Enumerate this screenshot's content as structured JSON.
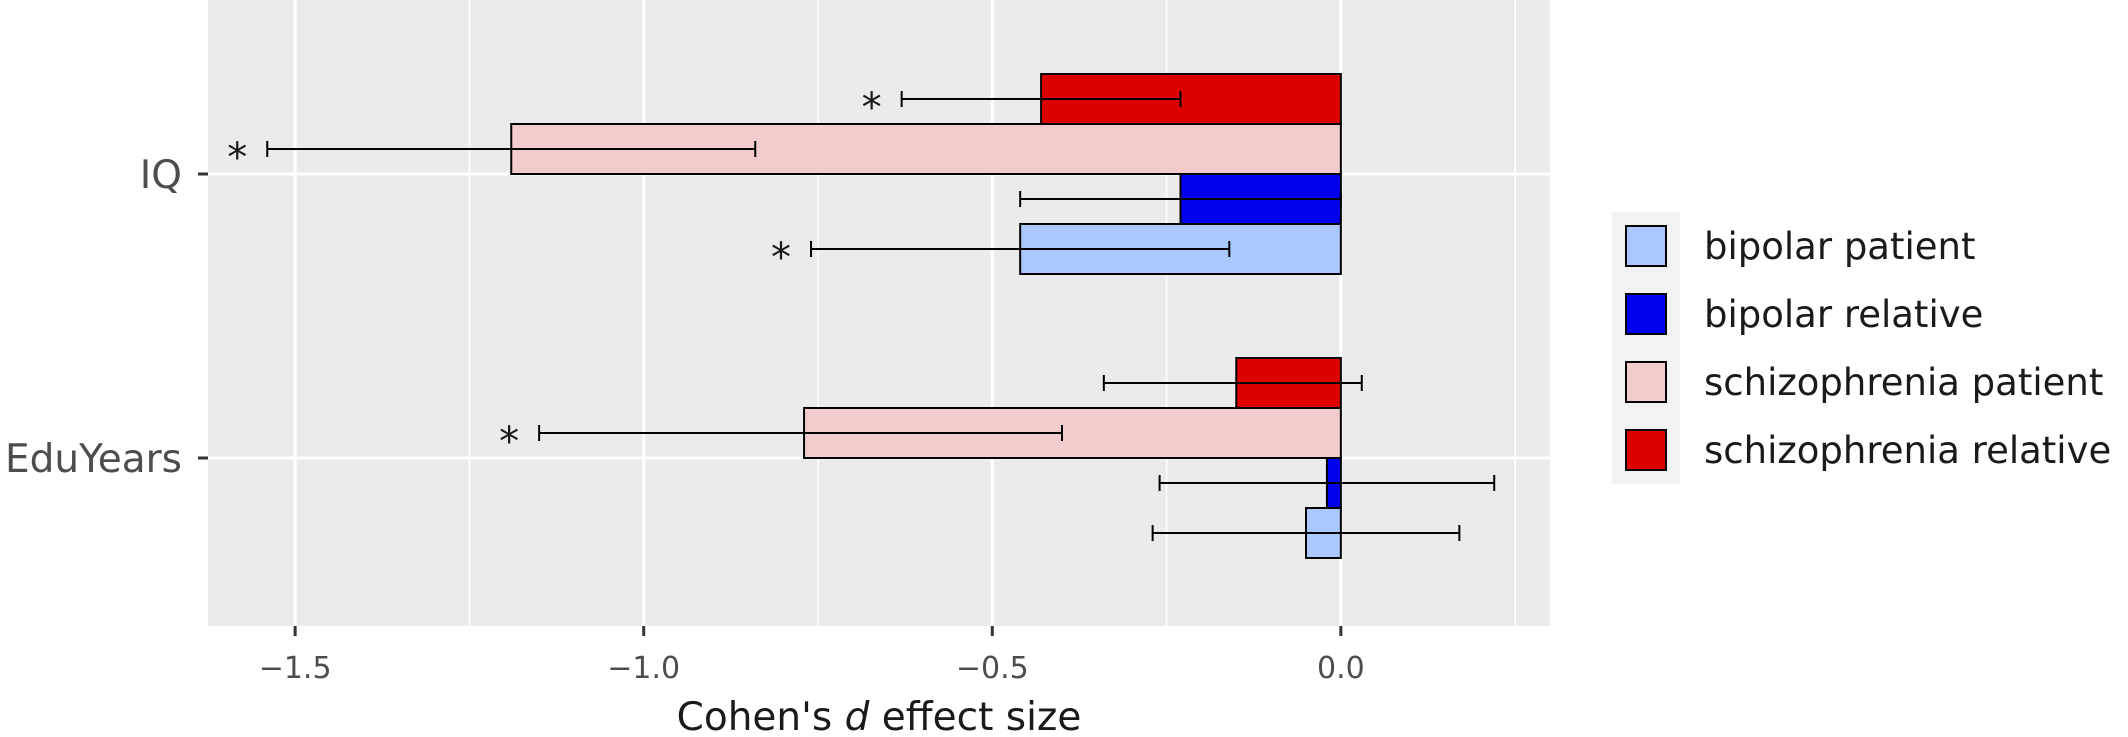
{
  "chart_data": {
    "type": "bar",
    "orientation": "horizontal",
    "categories": [
      "IQ",
      "EduYears"
    ],
    "series": [
      {
        "name": "bipolar patient",
        "color": "#a8c8ff",
        "values": [
          -0.46,
          -0.05
        ],
        "ci_low": [
          -0.76,
          -0.27
        ],
        "ci_high": [
          -0.16,
          0.17
        ],
        "significant": [
          true,
          false
        ]
      },
      {
        "name": "bipolar relative",
        "color": "#0000ee",
        "values": [
          -0.23,
          -0.02
        ],
        "ci_low": [
          -0.46,
          -0.26
        ],
        "ci_high": [
          0.0,
          0.22
        ],
        "significant": [
          false,
          false
        ]
      },
      {
        "name": "schizophrenia patient",
        "color": "#f2cccc",
        "values": [
          -1.19,
          -0.77
        ],
        "ci_low": [
          -1.54,
          -1.15
        ],
        "ci_high": [
          -0.84,
          -0.4
        ],
        "significant": [
          true,
          true
        ]
      },
      {
        "name": "schizophrenia relative",
        "color": "#dd0000",
        "values": [
          -0.43,
          -0.15
        ],
        "ci_low": [
          -0.63,
          -0.34
        ],
        "ci_high": [
          -0.23,
          0.03
        ],
        "significant": [
          true,
          false
        ]
      }
    ],
    "xlim": [
      -1.625,
      0.3
    ],
    "xticks": [
      "-1.5",
      "-1.0",
      "-0.5",
      "0.0"
    ],
    "xtick_values": [
      -1.5,
      -1.0,
      -0.5,
      0.0
    ],
    "xlabel_prefix": "Cohen's",
    "xlabel_italic": "d",
    "xlabel_suffix": "effect size",
    "significance_marker": "*",
    "grid": true,
    "legend_position": "right"
  }
}
